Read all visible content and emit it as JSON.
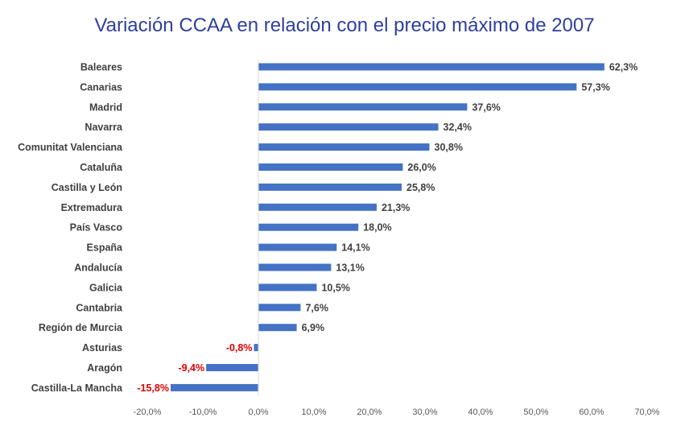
{
  "chart_data": {
    "type": "bar",
    "orientation": "horizontal",
    "title": "Variación CCAA en relación con el precio máximo de 2007",
    "categories": [
      "Baleares",
      "Canarias",
      "Madrid",
      "Navarra",
      "Comunitat Valenciana",
      "Cataluña",
      "Castilla y León",
      "Extremadura",
      "País Vasco",
      "España",
      "Andalucía",
      "Galicia",
      "Cantabria",
      "Región de Murcia",
      "Asturias",
      "Aragón",
      "Castilla-La Mancha"
    ],
    "values": [
      62.3,
      57.3,
      37.6,
      32.4,
      30.8,
      26.0,
      25.8,
      21.3,
      18.0,
      14.1,
      13.1,
      10.5,
      7.6,
      6.9,
      -0.8,
      -9.4,
      -15.8
    ],
    "data_labels": [
      "62,3%",
      "57,3%",
      "37,6%",
      "32,4%",
      "30,8%",
      "26,0%",
      "25,8%",
      "21,3%",
      "18,0%",
      "14,1%",
      "13,1%",
      "10,5%",
      "7,6%",
      "6,9%",
      "-0,8%",
      "-9,4%",
      "-15,8%"
    ],
    "xlim": [
      -20,
      70
    ],
    "x_ticks": [
      "-20,0%",
      "-10,0%",
      "0,0%",
      "10,0%",
      "20,0%",
      "30,0%",
      "40,0%",
      "50,0%",
      "60,0%",
      "70,0%"
    ],
    "grid": false,
    "legend": "none",
    "colors": {
      "bar": "#4472C4",
      "positive_label": "#404040",
      "negative_label": "#E00000",
      "title": "#2E3F9E"
    }
  }
}
